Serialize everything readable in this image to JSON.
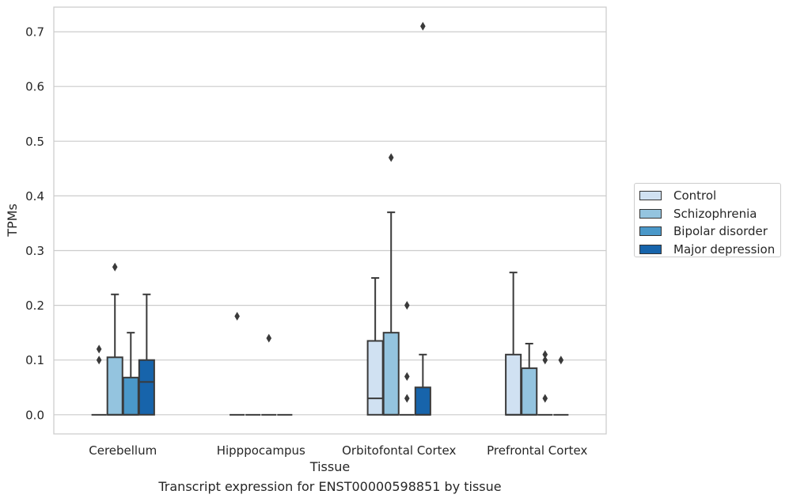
{
  "chart_data": {
    "type": "box",
    "title": "",
    "caption": "Transcript expression for ENST00000598851 by tissue",
    "xlabel": "Tissue",
    "ylabel": "TPMs",
    "ylim": [
      -0.035,
      0.745
    ],
    "yticks": [
      0.0,
      0.1,
      0.2,
      0.3,
      0.4,
      0.5,
      0.6,
      0.7
    ],
    "ytick_labels": [
      "0.0",
      "0.1",
      "0.2",
      "0.3",
      "0.4",
      "0.5",
      "0.6",
      "0.7"
    ],
    "grid": "horizontal",
    "legend_position": "right",
    "categories": [
      "Cerebellum",
      "Hipppocampus",
      "Orbitofontal Cortex",
      "Prefrontal Cortex"
    ],
    "series": [
      {
        "name": "Control",
        "color": "#d0e1f2",
        "boxes": [
          {
            "q1": 0,
            "median": 0,
            "q3": 0,
            "whisker_low": 0,
            "whisker_high": 0,
            "outliers": [
              0.1,
              0.12
            ]
          },
          {
            "q1": 0,
            "median": 0,
            "q3": 0,
            "whisker_low": 0,
            "whisker_high": 0,
            "outliers": [
              0.18
            ]
          },
          {
            "q1": 0,
            "median": 0.03,
            "q3": 0.135,
            "whisker_low": 0,
            "whisker_high": 0.25,
            "outliers": []
          },
          {
            "q1": 0,
            "median": 0,
            "q3": 0.11,
            "whisker_low": 0,
            "whisker_high": 0.26,
            "outliers": []
          }
        ]
      },
      {
        "name": "Schizophrenia",
        "color": "#94c4df",
        "boxes": [
          {
            "q1": 0,
            "median": 0,
            "q3": 0.105,
            "whisker_low": 0,
            "whisker_high": 0.22,
            "outliers": [
              0.27
            ]
          },
          {
            "q1": 0,
            "median": 0,
            "q3": 0,
            "whisker_low": 0,
            "whisker_high": 0,
            "outliers": []
          },
          {
            "q1": 0,
            "median": 0,
            "q3": 0.15,
            "whisker_low": 0,
            "whisker_high": 0.37,
            "outliers": [
              0.47
            ]
          },
          {
            "q1": 0,
            "median": 0,
            "q3": 0.085,
            "whisker_low": 0,
            "whisker_high": 0.13,
            "outliers": []
          }
        ]
      },
      {
        "name": "Bipolar disorder",
        "color": "#4a98c9",
        "boxes": [
          {
            "q1": 0,
            "median": 0,
            "q3": 0.068,
            "whisker_low": 0,
            "whisker_high": 0.15,
            "outliers": []
          },
          {
            "q1": 0,
            "median": 0,
            "q3": 0,
            "whisker_low": 0,
            "whisker_high": 0,
            "outliers": [
              0.14
            ]
          },
          {
            "q1": 0,
            "median": 0,
            "q3": 0,
            "whisker_low": 0,
            "whisker_high": 0,
            "outliers": [
              0.03,
              0.07,
              0.2
            ]
          },
          {
            "q1": 0,
            "median": 0,
            "q3": 0,
            "whisker_low": 0,
            "whisker_high": 0,
            "outliers": [
              0.03,
              0.1,
              0.11
            ]
          }
        ]
      },
      {
        "name": "Major depression",
        "color": "#1764ab",
        "boxes": [
          {
            "q1": 0,
            "median": 0.06,
            "q3": 0.1,
            "whisker_low": 0,
            "whisker_high": 0.22,
            "outliers": []
          },
          {
            "q1": 0,
            "median": 0,
            "q3": 0,
            "whisker_low": 0,
            "whisker_high": 0,
            "outliers": []
          },
          {
            "q1": 0,
            "median": 0,
            "q3": 0.05,
            "whisker_low": 0,
            "whisker_high": 0.11,
            "outliers": [
              0.71
            ]
          },
          {
            "q1": 0,
            "median": 0,
            "q3": 0,
            "whisker_low": 0,
            "whisker_high": 0,
            "outliers": [
              0.1
            ]
          }
        ]
      }
    ]
  }
}
